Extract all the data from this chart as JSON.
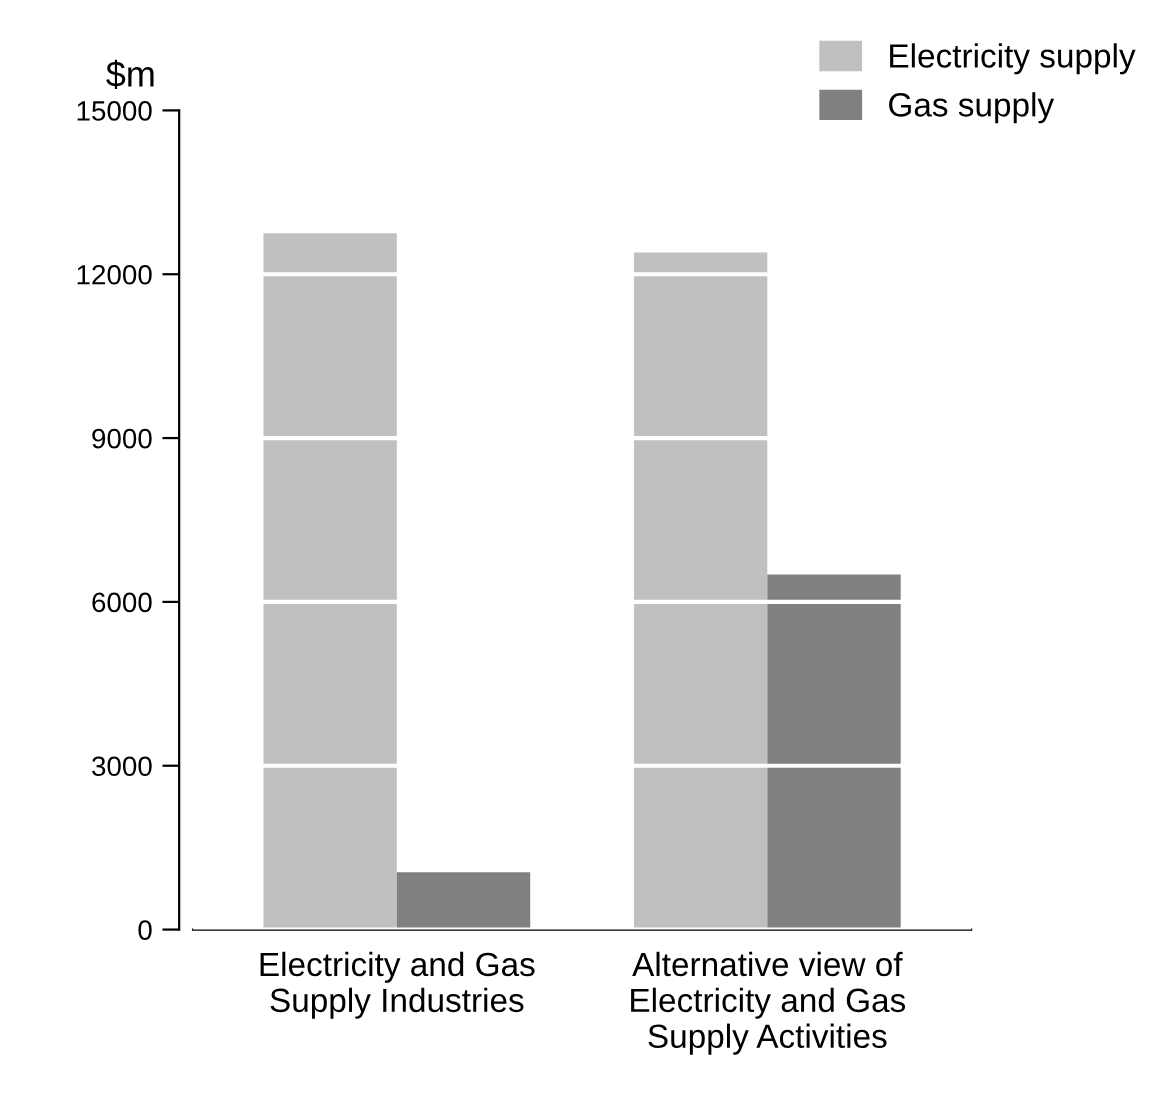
{
  "chart_data": {
    "type": "bar",
    "ylabel": "$m",
    "categories": [
      "Electricity and Gas\nSupply Industries",
      "Alternative view of\nElectricity and Gas\nSupply Activities"
    ],
    "series": [
      {
        "name": "Electricity supply",
        "color": "#c0c0c0",
        "values": [
          12750,
          12400
        ]
      },
      {
        "name": "Gas supply",
        "color": "#808080",
        "values": [
          1050,
          6500
        ]
      }
    ],
    "ylim": [
      0,
      15000
    ],
    "yticks": [
      0,
      3000,
      6000,
      9000,
      12000,
      15000
    ],
    "grid": "y",
    "legend": "top right"
  }
}
